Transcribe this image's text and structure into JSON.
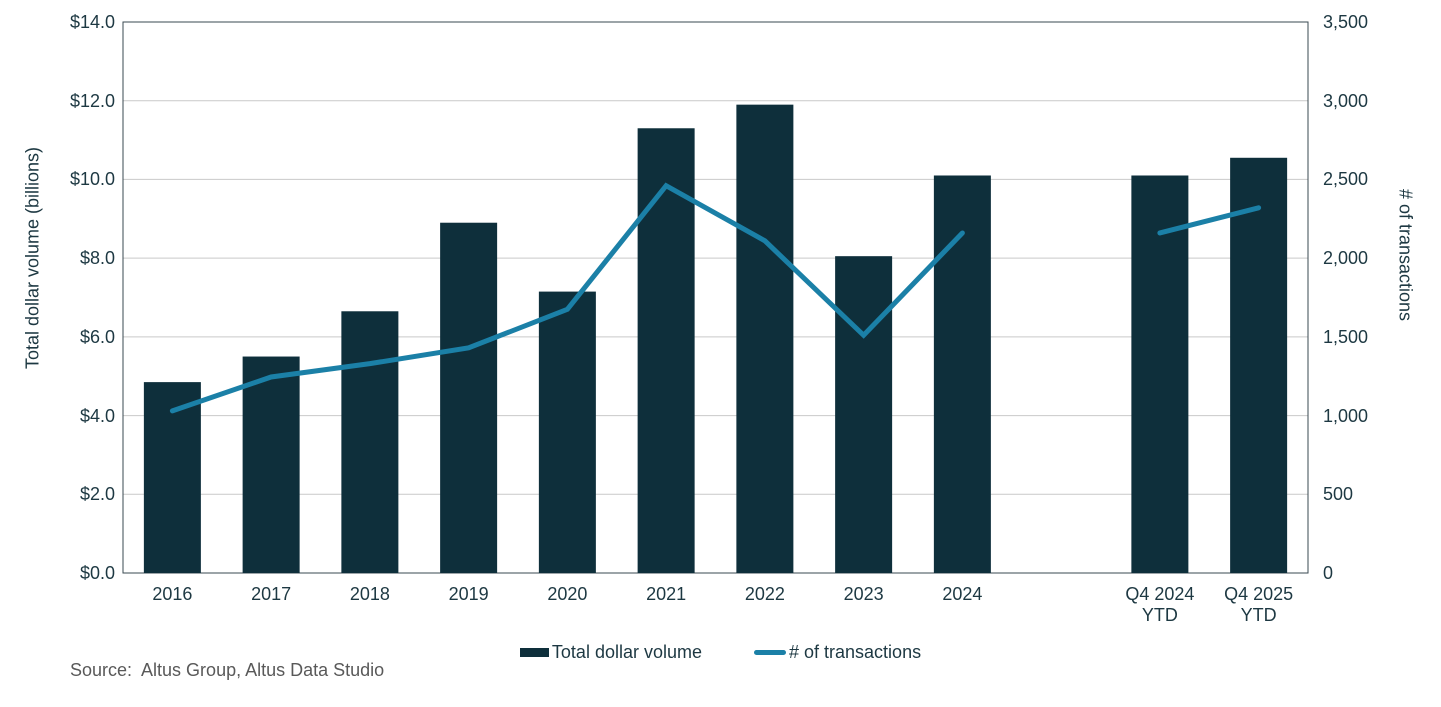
{
  "chart_data": {
    "type": "combo",
    "categories": [
      "2016",
      "2017",
      "2018",
      "2019",
      "2020",
      "2021",
      "2022",
      "2023",
      "2024",
      "",
      "Q4 2024\nYTD",
      "Q4 2025\nYTD"
    ],
    "series": [
      {
        "name": "Total dollar volume",
        "type": "bar",
        "axis": "left",
        "color": "#0E2F3B",
        "values": [
          4.85,
          5.5,
          6.65,
          8.9,
          7.15,
          11.3,
          11.9,
          8.05,
          10.1,
          null,
          10.1,
          10.55
        ]
      },
      {
        "name": "# of transactions",
        "type": "line",
        "axis": "right",
        "color": "#1B80A7",
        "values": [
          1030,
          1245,
          1330,
          1430,
          1675,
          2460,
          2110,
          1510,
          2160,
          null,
          2160,
          2320
        ]
      }
    ],
    "left_axis": {
      "label": "Total dollar volume (billions)",
      "min": 0,
      "max": 14,
      "step": 2,
      "ticks": [
        "$0.0",
        "$2.0",
        "$4.0",
        "$6.0",
        "$8.0",
        "$10.0",
        "$12.0",
        "$14.0"
      ]
    },
    "right_axis": {
      "label": "# of transactions",
      "min": 0,
      "max": 3500,
      "step": 500,
      "ticks": [
        "0",
        "500",
        "1,000",
        "1,500",
        "2,000",
        "2,500",
        "3,000",
        "3,500"
      ]
    },
    "grid": true,
    "legend_position": "bottom"
  },
  "legend": {
    "items": [
      {
        "label": "Total dollar volume",
        "swatch": "bar"
      },
      {
        "label": "# of transactions",
        "swatch": "line"
      }
    ]
  },
  "source": "Source:  Altus Group, Altus Data Studio",
  "colors": {
    "bar": "#0E2F3B",
    "line": "#1B80A7",
    "grid": "#C9C9C9",
    "plot_border": "#3A4850",
    "text": "#1D3842",
    "source_text": "#595959",
    "background": "#FFFFFF"
  }
}
